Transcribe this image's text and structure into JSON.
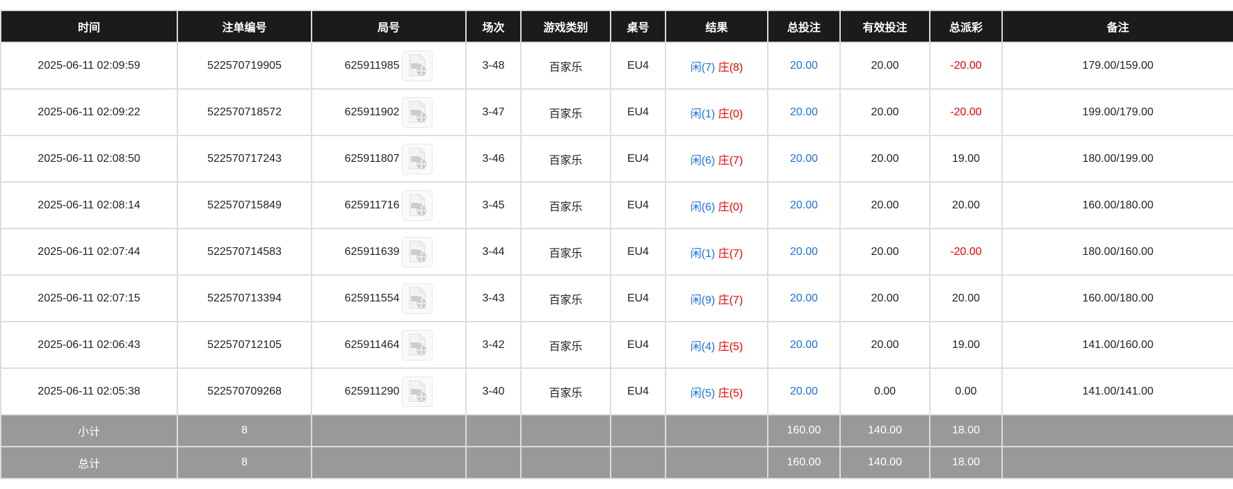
{
  "columns": [
    "时间",
    "注单编号",
    "局号",
    "场次",
    "游戏类别",
    "桌号",
    "结果",
    "总投注",
    "有效投注",
    "总派彩",
    "备注"
  ],
  "colors": {
    "header_bg": "#1b1b1b",
    "summary_bg": "#999999",
    "blue": "#1a6fe8",
    "red": "#ee0000"
  },
  "rows": [
    {
      "time": "2025-06-11 02:09:59",
      "bet_id": "522570719905",
      "round": "625911985",
      "shoe": "3-48",
      "game": "百家乐",
      "table": "EU4",
      "player": "闲(7)",
      "banker": "庄(8)",
      "total_bet": "20.00",
      "valid_bet": "20.00",
      "payout": "-20.00",
      "payout_negative": true,
      "note": "179.00/159.00"
    },
    {
      "time": "2025-06-11 02:09:22",
      "bet_id": "522570718572",
      "round": "625911902",
      "shoe": "3-47",
      "game": "百家乐",
      "table": "EU4",
      "player": "闲(1)",
      "banker": "庄(0)",
      "total_bet": "20.00",
      "valid_bet": "20.00",
      "payout": "-20.00",
      "payout_negative": true,
      "note": "199.00/179.00"
    },
    {
      "time": "2025-06-11 02:08:50",
      "bet_id": "522570717243",
      "round": "625911807",
      "shoe": "3-46",
      "game": "百家乐",
      "table": "EU4",
      "player": "闲(6)",
      "banker": "庄(7)",
      "total_bet": "20.00",
      "valid_bet": "20.00",
      "payout": "19.00",
      "payout_negative": false,
      "note": "180.00/199.00"
    },
    {
      "time": "2025-06-11 02:08:14",
      "bet_id": "522570715849",
      "round": "625911716",
      "shoe": "3-45",
      "game": "百家乐",
      "table": "EU4",
      "player": "闲(6)",
      "banker": "庄(0)",
      "total_bet": "20.00",
      "valid_bet": "20.00",
      "payout": "20.00",
      "payout_negative": false,
      "note": "160.00/180.00"
    },
    {
      "time": "2025-06-11 02:07:44",
      "bet_id": "522570714583",
      "round": "625911639",
      "shoe": "3-44",
      "game": "百家乐",
      "table": "EU4",
      "player": "闲(1)",
      "banker": "庄(7)",
      "total_bet": "20.00",
      "valid_bet": "20.00",
      "payout": "-20.00",
      "payout_negative": true,
      "note": "180.00/160.00"
    },
    {
      "time": "2025-06-11 02:07:15",
      "bet_id": "522570713394",
      "round": "625911554",
      "shoe": "3-43",
      "game": "百家乐",
      "table": "EU4",
      "player": "闲(9)",
      "banker": "庄(7)",
      "total_bet": "20.00",
      "valid_bet": "20.00",
      "payout": "20.00",
      "payout_negative": false,
      "note": "160.00/180.00"
    },
    {
      "time": "2025-06-11 02:06:43",
      "bet_id": "522570712105",
      "round": "625911464",
      "shoe": "3-42",
      "game": "百家乐",
      "table": "EU4",
      "player": "闲(4)",
      "banker": "庄(5)",
      "total_bet": "20.00",
      "valid_bet": "20.00",
      "payout": "19.00",
      "payout_negative": false,
      "note": "141.00/160.00"
    },
    {
      "time": "2025-06-11 02:05:38",
      "bet_id": "522570709268",
      "round": "625911290",
      "shoe": "3-40",
      "game": "百家乐",
      "table": "EU4",
      "player": "闲(5)",
      "banker": "庄(5)",
      "total_bet": "20.00",
      "valid_bet": "0.00",
      "payout": "0.00",
      "payout_negative": false,
      "note": "141.00/141.00"
    }
  ],
  "summary": [
    {
      "label": "小计",
      "count": "8",
      "total_bet": "160.00",
      "valid_bet": "140.00",
      "payout": "18.00"
    },
    {
      "label": "总计",
      "count": "8",
      "total_bet": "160.00",
      "valid_bet": "140.00",
      "payout": "18.00"
    }
  ]
}
